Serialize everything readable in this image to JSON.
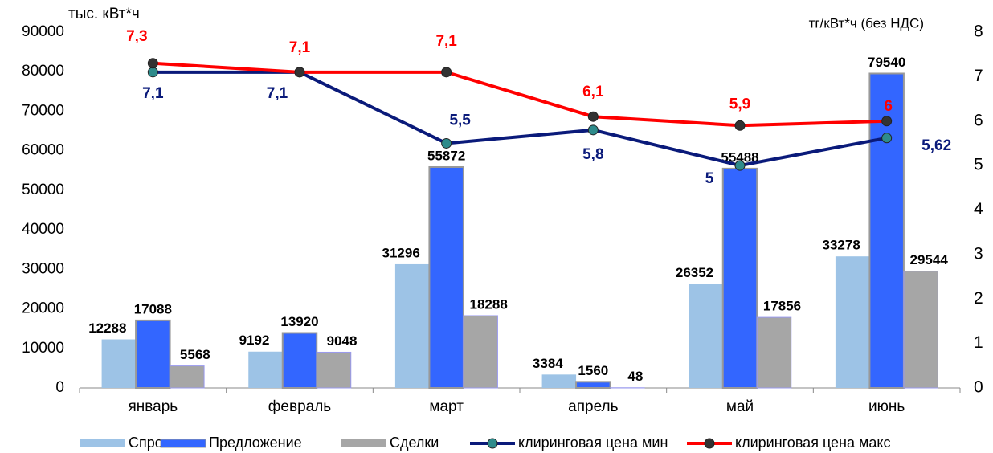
{
  "chart_data": {
    "type": "bar",
    "ylabel": "тыс. кВт*ч",
    "y2label": "тг/кВт*ч (без НДС)",
    "categories": [
      "январь",
      "февраль",
      "март",
      "апрель",
      "май",
      "июнь"
    ],
    "ylim": [
      0,
      90000
    ],
    "yticks": [
      0,
      10000,
      20000,
      30000,
      40000,
      50000,
      60000,
      70000,
      80000,
      90000
    ],
    "y2lim": [
      0,
      8
    ],
    "y2ticks": [
      0,
      1,
      2,
      3,
      4,
      5,
      6,
      7,
      8
    ],
    "legend": "bottom",
    "series": [
      {
        "name": "Спрос",
        "type": "bar",
        "color": "#9dc3e6",
        "values": [
          12288,
          9192,
          31296,
          3384,
          26352,
          33278
        ]
      },
      {
        "name": "Предложение",
        "type": "bar",
        "color": "#3366ff",
        "values": [
          17088,
          13920,
          55872,
          1560,
          55488,
          79540
        ]
      },
      {
        "name": "Сделки",
        "type": "bar",
        "color": "#a6a6a6",
        "values": [
          5568,
          9048,
          18288,
          48,
          17856,
          29544
        ]
      },
      {
        "name": "клиринговая цена мин",
        "type": "line",
        "axis": "y2",
        "color": "#0a1a7a",
        "marker_color": "#2e8b8b",
        "label_color": "#0a1a7a",
        "values": [
          7.1,
          7.1,
          5.5,
          5.8,
          5,
          5.62
        ],
        "value_labels": [
          "7,1",
          "7,1",
          "5,5",
          "5,8",
          "5",
          "5,62"
        ]
      },
      {
        "name": "клиринговая цена макс",
        "type": "line",
        "axis": "y2",
        "color": "#ff0000",
        "marker_color": "#333333",
        "label_color": "#ff0000",
        "values": [
          7.3,
          7.1,
          7.1,
          6.1,
          5.9,
          6
        ],
        "value_labels": [
          "7,3",
          "7,1",
          "7,1",
          "6,1",
          "5,9",
          "6"
        ]
      }
    ]
  }
}
